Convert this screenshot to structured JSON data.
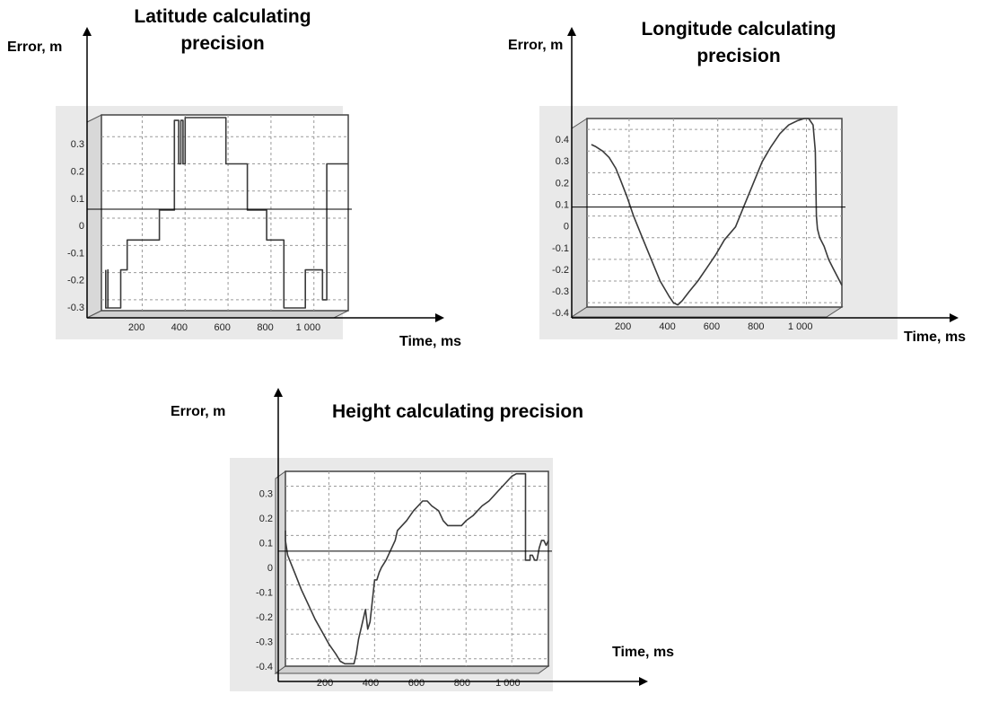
{
  "chart_data": [
    {
      "type": "line",
      "title": "Latitude calculating precision",
      "title_lines": [
        "Latitude calculating",
        "precision"
      ],
      "xlabel": "Time, ms",
      "ylabel": "Error, m",
      "x_ticks": [
        200,
        400,
        600,
        800,
        1000
      ],
      "x_tick_labels": [
        "200",
        "400",
        "600",
        "800",
        "1 000"
      ],
      "y_ticks": [
        0.3,
        0.2,
        0.1,
        0,
        -0.1,
        -0.2,
        -0.3
      ],
      "y_tick_labels": [
        "0.3",
        "0.2",
        "0.1",
        "0",
        "-0.1",
        "-0.2",
        "-0.3"
      ],
      "xlim": [
        10,
        1160
      ],
      "ylim": [
        -0.34,
        0.38
      ],
      "grid": true,
      "series": [
        {
          "x": [
            30,
            30,
            40,
            40,
            40,
            100,
            100,
            130,
            130,
            280,
            280,
            350,
            350,
            350,
            370,
            370,
            380,
            380,
            390,
            390,
            400,
            400,
            590,
            590,
            690,
            690,
            780,
            780,
            860,
            860,
            960,
            960,
            1040,
            1040,
            1060,
            1060,
            1160
          ],
          "y": [
            -0.19,
            -0.33,
            -0.33,
            -0.19,
            -0.33,
            -0.33,
            -0.19,
            -0.19,
            -0.08,
            -0.08,
            0.03,
            0.03,
            0.2,
            0.36,
            0.36,
            0.2,
            0.2,
            0.36,
            0.36,
            0.2,
            0.2,
            0.37,
            0.37,
            0.2,
            0.2,
            0.03,
            0.03,
            -0.08,
            -0.08,
            -0.33,
            -0.33,
            -0.19,
            -0.19,
            -0.3,
            -0.3,
            0.2,
            0.2
          ]
        }
      ]
    },
    {
      "type": "line",
      "title": "Longitude calculating precision",
      "title_lines": [
        "Longitude calculating",
        "precision"
      ],
      "xlabel": "Time, ms",
      "ylabel": "Error, m",
      "x_ticks": [
        200,
        400,
        600,
        800,
        1000
      ],
      "x_tick_labels": [
        "200",
        "400",
        "600",
        "800",
        "1 000"
      ],
      "y_ticks": [
        0.4,
        0.3,
        0.2,
        0.1,
        0,
        -0.1,
        -0.2,
        -0.3,
        -0.4
      ],
      "y_tick_labels": [
        "0.4",
        "0.3",
        "0.2",
        "0.1",
        "0",
        "-0.1",
        "-0.2",
        "-0.3",
        "-0.4"
      ],
      "xlim": [
        10,
        1160
      ],
      "ylim": [
        -0.42,
        0.45
      ],
      "grid": true,
      "series": [
        {
          "x": [
            30,
            50,
            80,
            110,
            140,
            160,
            190,
            220,
            260,
            300,
            340,
            380,
            400,
            420,
            440,
            470,
            510,
            550,
            590,
            630,
            680,
            720,
            760,
            800,
            840,
            880,
            920,
            960,
            990,
            1010,
            1030,
            1040,
            1045,
            1050,
            1060,
            1080,
            1100,
            1120,
            1140,
            1160
          ],
          "y": [
            0.33,
            0.32,
            0.3,
            0.27,
            0.22,
            0.17,
            0.09,
            0,
            -0.1,
            -0.2,
            -0.3,
            -0.37,
            -0.4,
            -0.41,
            -0.39,
            -0.35,
            -0.3,
            -0.24,
            -0.18,
            -0.11,
            -0.05,
            0.05,
            0.15,
            0.25,
            0.32,
            0.38,
            0.42,
            0.44,
            0.45,
            0.45,
            0.42,
            0.3,
            0.0,
            -0.06,
            -0.1,
            -0.14,
            -0.2,
            -0.24,
            -0.28,
            -0.32
          ]
        }
      ]
    },
    {
      "type": "line",
      "title": "Height calculating precision",
      "title_lines": [
        "Height calculating precision"
      ],
      "xlabel": "Time, ms",
      "ylabel": "Error, m",
      "x_ticks": [
        200,
        400,
        600,
        800,
        1000
      ],
      "x_tick_labels": [
        "200",
        "400",
        "600",
        "800",
        "1 000"
      ],
      "y_ticks": [
        0.3,
        0.2,
        0.1,
        0,
        -0.1,
        -0.2,
        -0.3,
        -0.4
      ],
      "y_tick_labels": [
        "0.3",
        "0.2",
        "0.1",
        "0",
        "-0.1",
        "-0.2",
        "-0.3",
        "-0.4"
      ],
      "xlim": [
        10,
        1160
      ],
      "ylim": [
        -0.43,
        0.36
      ],
      "grid": true,
      "series": [
        {
          "x": [
            10,
            10,
            20,
            50,
            80,
            110,
            140,
            170,
            200,
            230,
            250,
            270,
            290,
            310,
            320,
            330,
            340,
            360,
            370,
            380,
            400,
            410,
            420,
            430,
            450,
            470,
            490,
            500,
            520,
            540,
            570,
            590,
            610,
            630,
            650,
            680,
            700,
            720,
            740,
            760,
            780,
            800,
            830,
            850,
            870,
            900,
            920,
            940,
            960,
            980,
            1000,
            1020,
            1040,
            1060,
            1060,
            1080,
            1080,
            1090,
            1100,
            1110,
            1120,
            1130,
            1140,
            1150,
            1160
          ],
          "y": [
            0.12,
            0.08,
            0.02,
            -0.05,
            -0.12,
            -0.18,
            -0.24,
            -0.29,
            -0.34,
            -0.38,
            -0.41,
            -0.42,
            -0.42,
            -0.42,
            -0.38,
            -0.32,
            -0.28,
            -0.2,
            -0.28,
            -0.25,
            -0.08,
            -0.08,
            -0.05,
            -0.03,
            0.0,
            0.04,
            0.08,
            0.12,
            0.14,
            0.16,
            0.2,
            0.22,
            0.24,
            0.24,
            0.22,
            0.2,
            0.16,
            0.14,
            0.14,
            0.14,
            0.14,
            0.16,
            0.18,
            0.2,
            0.22,
            0.24,
            0.26,
            0.28,
            0.3,
            0.32,
            0.34,
            0.35,
            0.35,
            0.35,
            0.0,
            0.0,
            0.02,
            0.02,
            0.0,
            0.0,
            0.05,
            0.08,
            0.08,
            0.06,
            0.08
          ]
        }
      ]
    }
  ]
}
